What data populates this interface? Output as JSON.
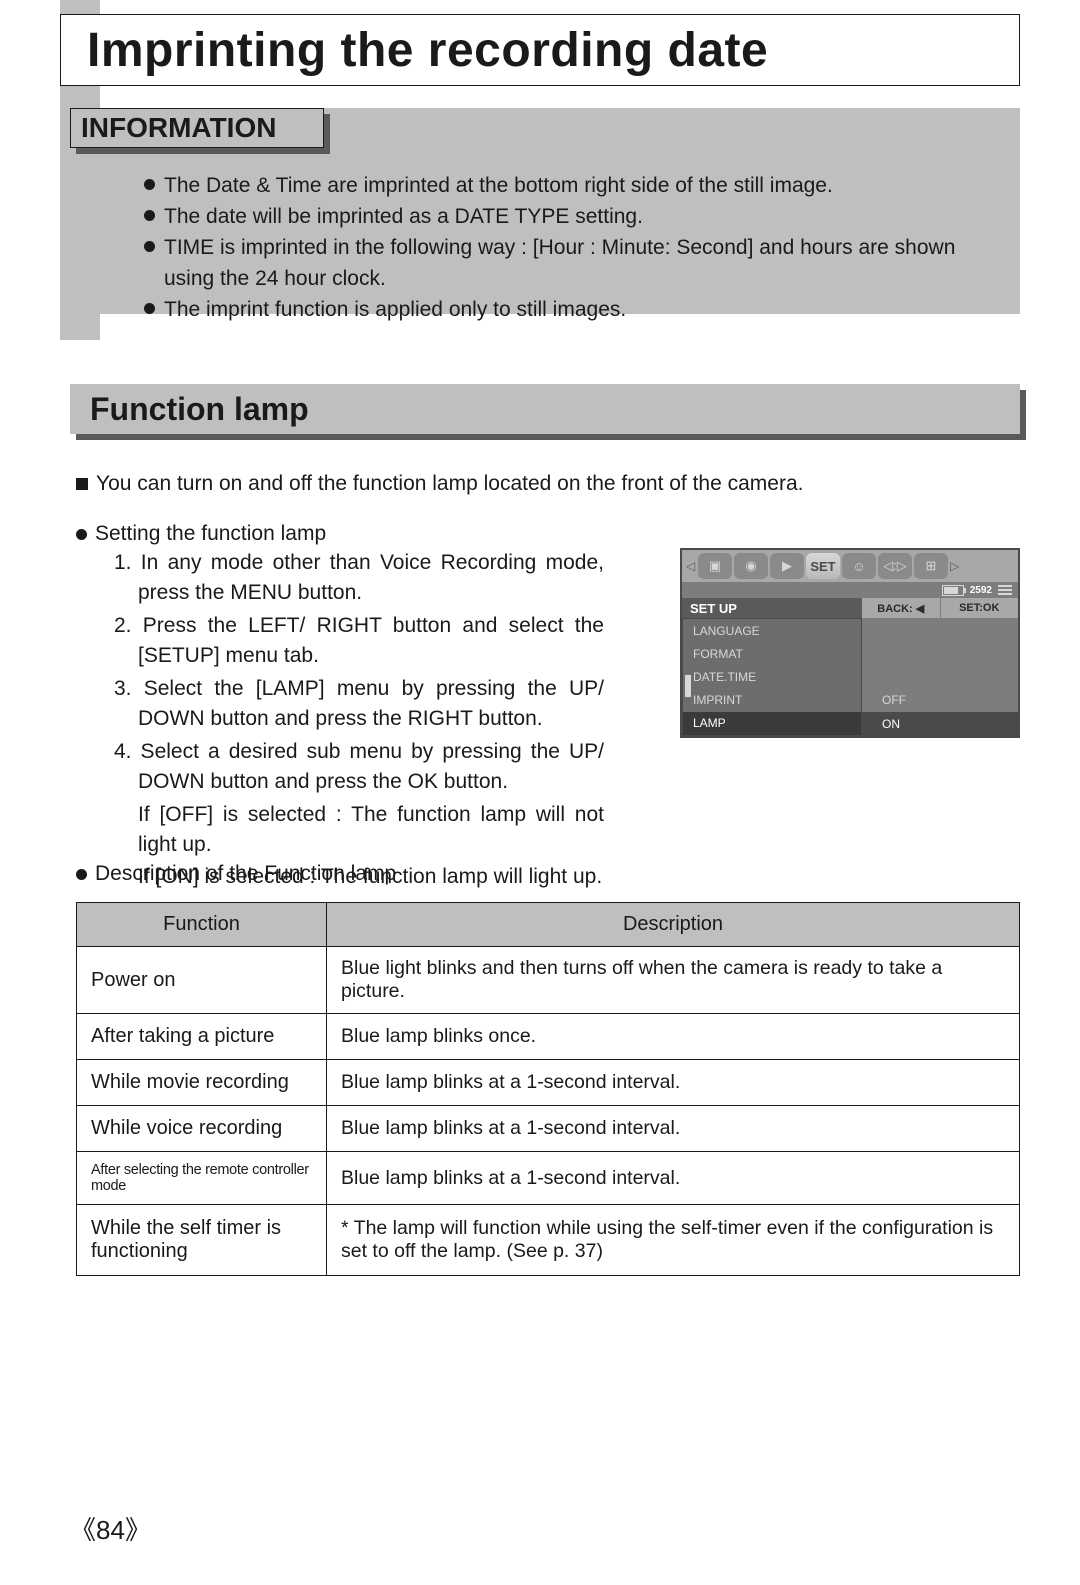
{
  "page": {
    "title": "Imprinting the recording date",
    "page_number": "84"
  },
  "information": {
    "heading": "INFORMATION",
    "bullets": [
      "The Date & Time are imprinted at the bottom right side of the still image.",
      "The date will be imprinted as a DATE TYPE setting.",
      "TIME is imprinted in the following way : [Hour : Minute: Second] and hours are shown using the 24 hour clock.",
      "The imprint function is applied only to still images."
    ]
  },
  "section": {
    "heading": "Function lamp",
    "intro": "You can turn on and off the function lamp located on the front of the camera.",
    "setting_head": "Setting the function lamp",
    "steps": {
      "s1": "1. In any mode other than Voice Recording mode, press the MENU button.",
      "s2": "2. Press the LEFT/ RIGHT button and select the [SETUP] menu tab.",
      "s3": "3. Select the [LAMP] menu by pressing the UP/ DOWN button and press the RIGHT button.",
      "s4": "4. Select a desired sub menu by pressing the UP/ DOWN button and press the OK button.",
      "if_off": "If [OFF] is selected  : The function lamp will not light up.",
      "if_on": "If [ON] is selected    : The function lamp will light up."
    },
    "desc_head": "Description of the Function lamp"
  },
  "lcd": {
    "icon_row": {
      "left_arrow": "◁",
      "right_arrow": "▷",
      "icons": [
        "▣",
        "◉",
        "▶",
        "SET",
        "☺",
        "◁:▷",
        "⊞"
      ],
      "selected_index": 3
    },
    "status": {
      "resolution": "2592"
    },
    "setup_row": {
      "label": "SET UP",
      "back": "BACK: ◀",
      "ok": "SET:OK"
    },
    "menu_left": [
      "LANGUAGE",
      "FORMAT",
      "DATE.TIME",
      "IMPRINT",
      "LAMP"
    ],
    "menu_left_selected": 4,
    "menu_right": [
      "OFF",
      "ON"
    ],
    "menu_right_selected": 1
  },
  "table": {
    "headers": {
      "func": "Function",
      "desc": "Description"
    },
    "rows": [
      {
        "func": "Power on",
        "desc": "Blue light blinks and then turns off when the camera is ready to take a picture."
      },
      {
        "func": "After taking a picture",
        "desc": "Blue lamp blinks once."
      },
      {
        "func": "While movie recording",
        "desc": "Blue lamp blinks at a 1-second interval."
      },
      {
        "func": "While voice recording",
        "desc": "Blue lamp blinks at a 1-second interval."
      },
      {
        "func": "After selecting the remote controller mode",
        "desc": "Blue lamp blinks at a 1-second interval.",
        "small": true
      },
      {
        "func": "While the self timer is functioning",
        "desc": "* The lamp will function while using the self-timer even if the configuration is set to off the lamp. (See p. 37)",
        "tall": true
      }
    ]
  },
  "colors": {
    "gray_panel": "#bfbfbe",
    "shadow": "#5a5a58",
    "text": "#1a1a1a",
    "lcd_bg": "#7d7d7b",
    "lcd_light": "#a8a8a6",
    "lcd_dark": "#4a4a48"
  }
}
